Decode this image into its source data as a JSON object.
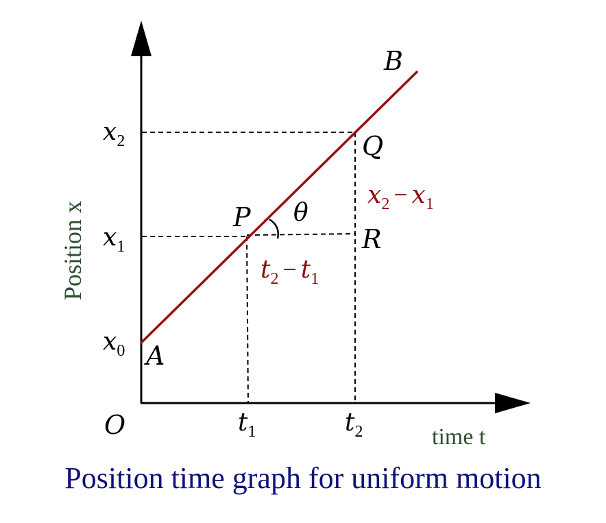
{
  "colors": {
    "line": "#9b0d0d",
    "axis": "#000000",
    "axis_title": "#2f4f2f",
    "caption": "#10107a",
    "red_label": "#8b0f0f"
  },
  "labels": {
    "origin": "O",
    "point_a": "A",
    "point_b": "B",
    "point_p": "P",
    "point_q": "Q",
    "point_r": "R",
    "theta": "θ",
    "x0_base": "x",
    "x0_sub": "0",
    "x1_base": "x",
    "x1_sub": "1",
    "x2_base": "x",
    "x2_sub": "2",
    "t1_base": "t",
    "t1_sub": "1",
    "t2_base": "t",
    "t2_sub": "2",
    "dx_a": "x",
    "dx_a_sub": "2",
    "dx_minus": "−",
    "dx_b": "x",
    "dx_b_sub": "1",
    "dt_a": "t",
    "dt_a_sub": "2",
    "dt_minus": "−",
    "dt_b": "t",
    "dt_b_sub": "1",
    "y_axis_title": "Position x",
    "x_axis_title": "time t"
  },
  "caption": "Position time graph for uniform motion"
}
